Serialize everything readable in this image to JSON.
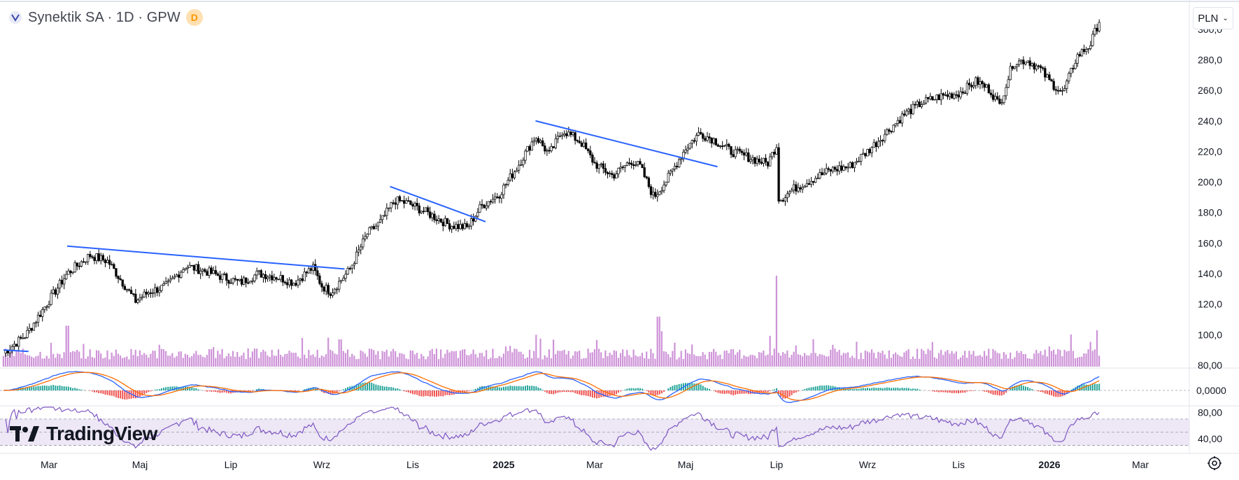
{
  "header": {
    "title": "Synektik SA · 1D · GPW",
    "badge": "D"
  },
  "currency": {
    "label": "PLN"
  },
  "watermark": {
    "text": "TradingView"
  },
  "colors": {
    "candle": "#000000",
    "trendline": "#2962ff",
    "volume": "#ce93d8",
    "macd_line": "#2962ff",
    "signal_line": "#ff6d00",
    "hist_pos": "#26a69a",
    "hist_neg": "#ef5350",
    "rsi_line": "#7e57c2",
    "rsi_band": "#ede7f6",
    "grid": "#e0e3eb",
    "axis_text": "#131722"
  },
  "chart_data": {
    "type": "candlestick",
    "price_axis": {
      "ticks": [
        80,
        100,
        120,
        140,
        160,
        180,
        200,
        220,
        240,
        260,
        280,
        300
      ],
      "tick_labels": [
        "80,00",
        "100,0",
        "120,0",
        "140,0",
        "160,0",
        "180,0",
        "200,0",
        "220,0",
        "240,0",
        "260,0",
        "280,0",
        "300,0"
      ],
      "ylim": [
        74,
        310
      ]
    },
    "macd_axis": {
      "tick_labels": [
        "0,0000"
      ]
    },
    "rsi_axis": {
      "ticks": [
        80,
        40
      ],
      "tick_labels": [
        "80,00",
        "40,00"
      ],
      "band": [
        30,
        70
      ]
    },
    "time_axis": {
      "labels": [
        "Mar",
        "Maj",
        "Lip",
        "Wrz",
        "Lis",
        "2025",
        "Mar",
        "Maj",
        "Lip",
        "Wrz",
        "Lis",
        "2026",
        "Mar"
      ],
      "bold": [
        false,
        false,
        false,
        false,
        false,
        true,
        false,
        false,
        false,
        false,
        false,
        true,
        false
      ],
      "months_index": [
        2,
        4,
        6,
        8,
        10,
        12,
        14,
        16,
        18,
        20,
        22,
        24,
        26
      ]
    },
    "date_range": {
      "start_month_index": 1.0,
      "end_month_index": 27.2
    },
    "price_path": [
      {
        "m": 1.0,
        "p": 88
      },
      {
        "m": 1.5,
        "p": 100
      },
      {
        "m": 1.9,
        "p": 118
      },
      {
        "m": 2.4,
        "p": 140
      },
      {
        "m": 2.9,
        "p": 152
      },
      {
        "m": 3.3,
        "p": 148
      },
      {
        "m": 3.6,
        "p": 135
      },
      {
        "m": 3.9,
        "p": 122
      },
      {
        "m": 4.2,
        "p": 128
      },
      {
        "m": 4.6,
        "p": 132
      },
      {
        "m": 5.0,
        "p": 145
      },
      {
        "m": 5.4,
        "p": 142
      },
      {
        "m": 5.8,
        "p": 138
      },
      {
        "m": 6.2,
        "p": 134
      },
      {
        "m": 6.6,
        "p": 140
      },
      {
        "m": 7.0,
        "p": 138
      },
      {
        "m": 7.4,
        "p": 134
      },
      {
        "m": 7.8,
        "p": 144
      },
      {
        "m": 8.0,
        "p": 132
      },
      {
        "m": 8.2,
        "p": 128
      },
      {
        "m": 8.6,
        "p": 142
      },
      {
        "m": 9.0,
        "p": 166
      },
      {
        "m": 9.3,
        "p": 174
      },
      {
        "m": 9.6,
        "p": 188
      },
      {
        "m": 9.9,
        "p": 186
      },
      {
        "m": 10.3,
        "p": 180
      },
      {
        "m": 10.8,
        "p": 172
      },
      {
        "m": 11.2,
        "p": 170
      },
      {
        "m": 11.5,
        "p": 184
      },
      {
        "m": 11.9,
        "p": 192
      },
      {
        "m": 12.3,
        "p": 210
      },
      {
        "m": 12.7,
        "p": 230
      },
      {
        "m": 13.0,
        "p": 218
      },
      {
        "m": 13.3,
        "p": 234
      },
      {
        "m": 13.7,
        "p": 226
      },
      {
        "m": 14.0,
        "p": 212
      },
      {
        "m": 14.4,
        "p": 204
      },
      {
        "m": 14.8,
        "p": 214
      },
      {
        "m": 15.0,
        "p": 210
      },
      {
        "m": 15.3,
        "p": 190
      },
      {
        "m": 15.6,
        "p": 202
      },
      {
        "m": 16.0,
        "p": 222
      },
      {
        "m": 16.3,
        "p": 232
      },
      {
        "m": 16.6,
        "p": 228
      },
      {
        "m": 17.0,
        "p": 220
      },
      {
        "m": 17.4,
        "p": 216
      },
      {
        "m": 17.8,
        "p": 212
      },
      {
        "m": 18.0,
        "p": 224
      },
      {
        "m": 18.05,
        "p": 188
      },
      {
        "m": 18.4,
        "p": 196
      },
      {
        "m": 18.8,
        "p": 202
      },
      {
        "m": 19.2,
        "p": 208
      },
      {
        "m": 19.6,
        "p": 210
      },
      {
        "m": 20.0,
        "p": 220
      },
      {
        "m": 20.4,
        "p": 232
      },
      {
        "m": 20.8,
        "p": 244
      },
      {
        "m": 21.2,
        "p": 252
      },
      {
        "m": 21.6,
        "p": 256
      },
      {
        "m": 22.0,
        "p": 258
      },
      {
        "m": 22.4,
        "p": 266
      },
      {
        "m": 22.7,
        "p": 260
      },
      {
        "m": 22.9,
        "p": 250
      },
      {
        "m": 23.2,
        "p": 278
      },
      {
        "m": 23.5,
        "p": 280
      },
      {
        "m": 23.8,
        "p": 274
      },
      {
        "m": 24.0,
        "p": 266
      },
      {
        "m": 24.3,
        "p": 258
      },
      {
        "m": 24.6,
        "p": 282
      },
      {
        "m": 24.9,
        "p": 290
      },
      {
        "m": 25.1,
        "p": 306
      }
    ],
    "trendlines": [
      {
        "from": {
          "m": 2.4,
          "p": 158
        },
        "to": {
          "m": 8.5,
          "p": 143
        }
      },
      {
        "from": {
          "m": 9.5,
          "p": 197
        },
        "to": {
          "m": 11.6,
          "p": 174
        }
      },
      {
        "from": {
          "m": 12.7,
          "p": 240
        },
        "to": {
          "m": 16.7,
          "p": 210
        }
      },
      {
        "from": {
          "m": 1.0,
          "p": 90
        },
        "to": {
          "m": 1.55,
          "p": 89
        }
      }
    ],
    "volume_spikes": [
      {
        "m": 18.0,
        "v": 1.0
      },
      {
        "m": 15.4,
        "v": 0.55
      },
      {
        "m": 25.05,
        "v": 0.4
      },
      {
        "m": 2.4,
        "v": 0.45
      },
      {
        "m": 8.4,
        "v": 0.3
      },
      {
        "m": 12.7,
        "v": 0.35
      }
    ]
  }
}
